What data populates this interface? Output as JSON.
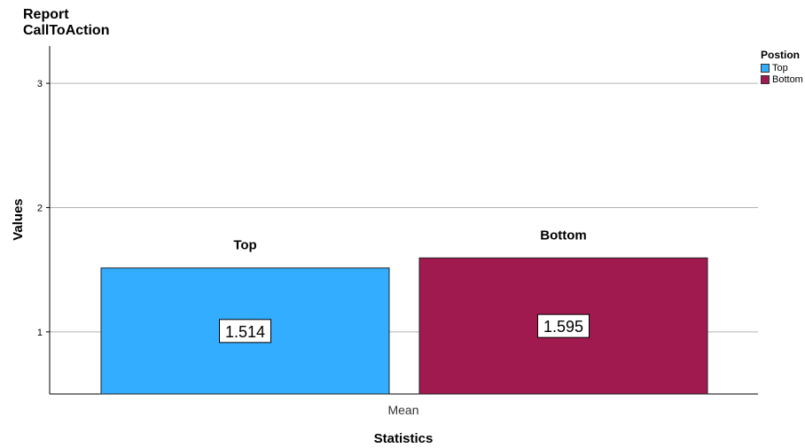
{
  "chart_data": {
    "type": "bar",
    "title": "Report",
    "subtitle": "CallToAction",
    "xlabel": "Statistics",
    "ylabel": "Values",
    "categories": [
      "Mean"
    ],
    "series": [
      {
        "name": "Top",
        "values": [
          1.514
        ],
        "color": "#33adff",
        "label": "1.514"
      },
      {
        "name": "Bottom",
        "values": [
          1.595
        ],
        "color": "#a0194f",
        "label": "1.595"
      }
    ],
    "ylim": [
      0.5,
      3.3
    ],
    "yticks": [
      1,
      2,
      3
    ],
    "grid": true,
    "legend": {
      "title": "Postion",
      "placement": "top-right"
    }
  }
}
